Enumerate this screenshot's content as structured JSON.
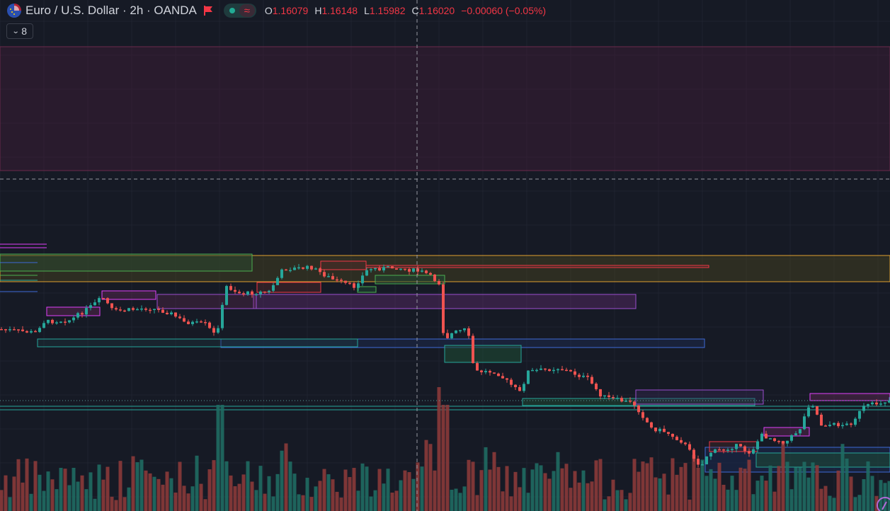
{
  "header": {
    "symbol": "Euro / U.S. Dollar · 2h · OANDA",
    "open_label": "O",
    "open": "1.16079",
    "high_label": "H",
    "high": "1.16148",
    "low_label": "L",
    "low": "1.15982",
    "close_label": "C",
    "close": "1.16020",
    "change": "−0.00060 (−0.05%)",
    "approx_glyph": "≈"
  },
  "indicators_toggle": {
    "count": "8",
    "icon": "chevron-down-icon"
  },
  "colors": {
    "background": "#161a25",
    "up": "#26a69a",
    "down": "#ef5350",
    "text": "#d1d4dc",
    "accent_red": "#f23645"
  },
  "icons": {
    "flag": "eu-us-flag-icon",
    "marker": "red-flag-icon",
    "logo": "tradingview-logo-icon"
  }
}
